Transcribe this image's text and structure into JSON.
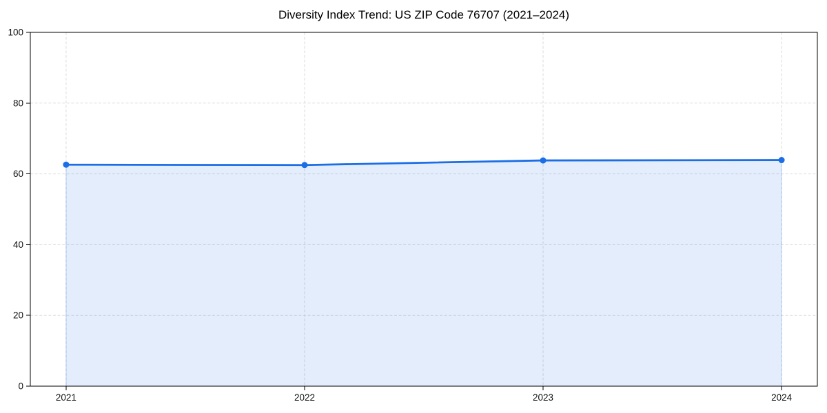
{
  "title": "Diversity Index Trend: US ZIP Code 76707 (2021–2024)",
  "chart_data": {
    "type": "area",
    "title": "Diversity Index Trend: US ZIP Code 76707 (2021–2024)",
    "x": [
      2021,
      2022,
      2023,
      2024
    ],
    "x_tick_labels": [
      "2021",
      "2022",
      "2023",
      "2024"
    ],
    "series": [
      {
        "name": "Diversity Index",
        "values": [
          62.6,
          62.5,
          63.8,
          63.9
        ]
      }
    ],
    "xlabel": "",
    "ylabel": "",
    "xlim": [
      2020.85,
      2024.15
    ],
    "ylim": [
      0,
      100
    ],
    "y_ticks": [
      0,
      20,
      40,
      60,
      80,
      100
    ],
    "grid": true,
    "grid_style": "dashed",
    "legend": false,
    "line_width": 2.8,
    "marker": {
      "shape": "circle",
      "radius": 4.5
    },
    "colors": {
      "line": "#1b6ee5",
      "area_opacity": 0.12,
      "grid": "#dcdcdc",
      "axis": "#000000",
      "tick_label": "#111111",
      "title": "#000000",
      "background": "#ffffff"
    }
  }
}
